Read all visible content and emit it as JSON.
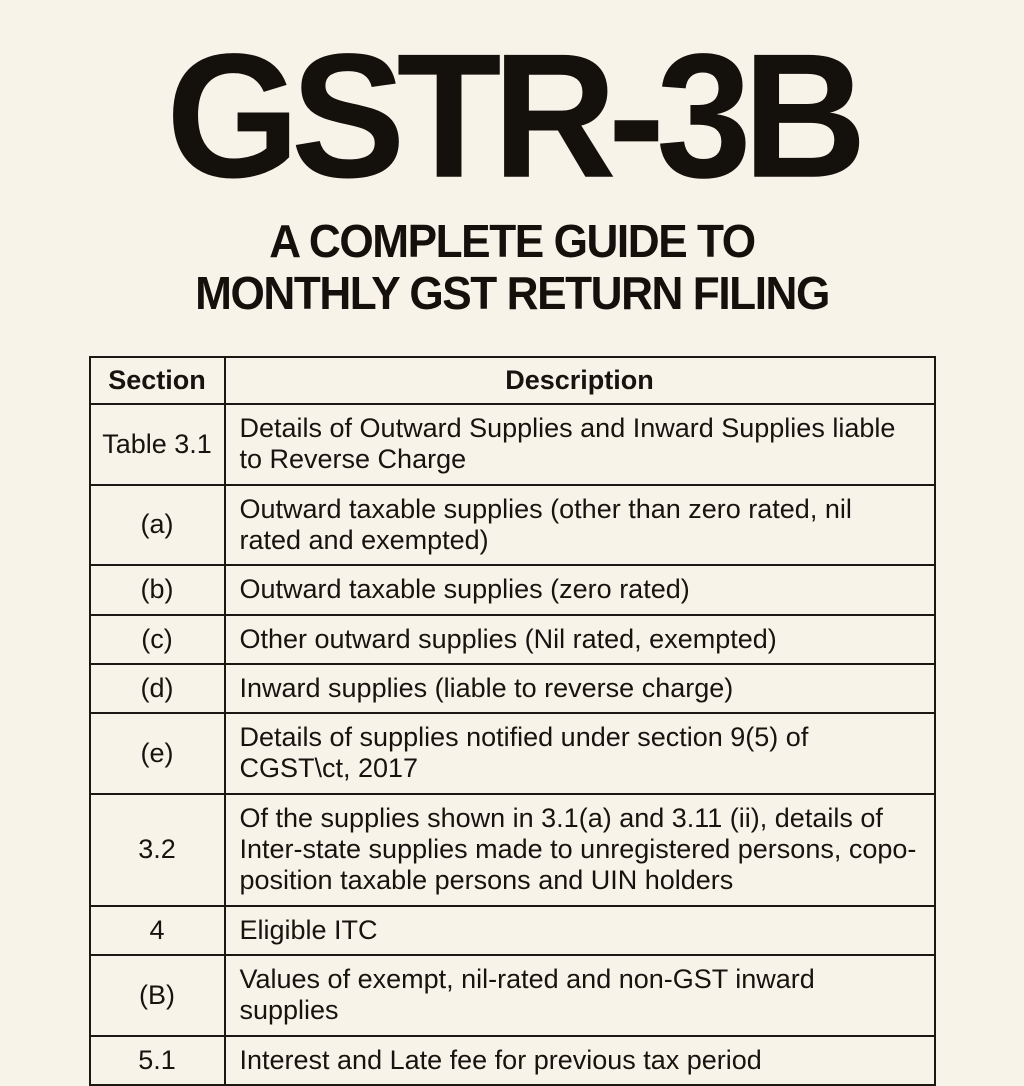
{
  "page": {
    "title": "GSTR-3B",
    "subtitle_line1": "A COMPLETE GUIDE TO",
    "subtitle_line2": "MONTHLY GST RETURN FILING",
    "background_color": "#f8f3e9",
    "text_color": "#14100c",
    "border_color": "#1b1712"
  },
  "table": {
    "headers": [
      "Section",
      "Description"
    ],
    "rows": [
      {
        "section": "Table 3.1",
        "description": "Details of Outward Supplies and Inward Supplies  liable to Reverse Charge"
      },
      {
        "section": "(a)",
        "description": "Outward taxable supplies (other than zero rated, nil rated and exempted)"
      },
      {
        "section": "(b)",
        "description": "Outward taxable supplies (zero rated)"
      },
      {
        "section": "(c)",
        "description": "Other outward supplies (Nil rated, exempted)"
      },
      {
        "section": "(d)",
        "description": "Inward supplies (liable to reverse charge)"
      },
      {
        "section": "(e)",
        "description": "Details of supplies notified under section 9(5) of CGST\\ct, 2017"
      },
      {
        "section": "3.2",
        "description": "Of the supplies shown in 3.1(a) and 3.11 (ii), details of Inter-state supplies made to unregistered persons, copo-position taxable persons and UIN holders"
      },
      {
        "section": "4",
        "description": "Eligible ITC"
      },
      {
        "section": "(B)",
        "description": "Values of exempt, nil-rated and non-GST inward supplies"
      },
      {
        "section": "5.1",
        "description": "Interest and Late fee for previous tax period"
      }
    ]
  }
}
